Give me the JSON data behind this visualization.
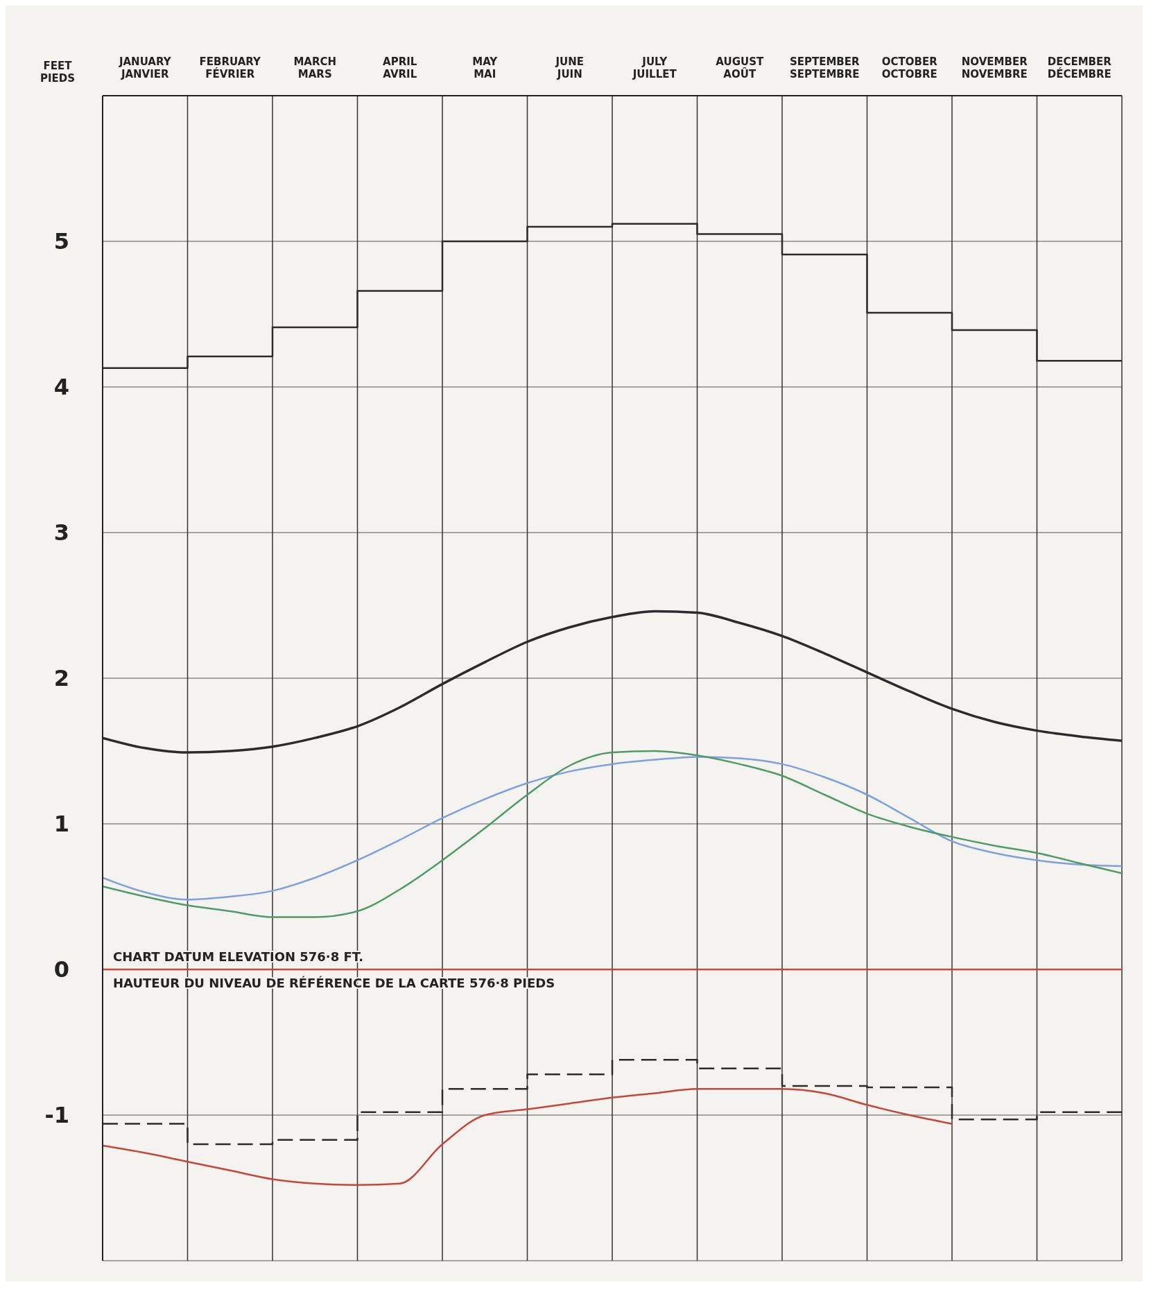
{
  "chart_data": {
    "type": "line",
    "ylabel": "FEET\nPIEDS",
    "categories": [
      null,
      "JANUARY\nJANVIER",
      null,
      "FEBRUARY\nFÉVRIER",
      null,
      "MARCH\nMARS",
      null,
      "APRIL\nAVRIL",
      null,
      "MAY\nMAI",
      null,
      "JUNE\nJUIN",
      null,
      "JULY\nJUILLET",
      null,
      "AUGUST\nAOÛT",
      null,
      "SEPTEMBER\nSEPTEMBRE",
      null,
      "OCTOBER\nOCTOBRE",
      null,
      "NOVEMBER\nNOVEMBRE",
      null,
      "DECEMBER\nDÉCEMBRE",
      null
    ],
    "ylim": [
      -2,
      6
    ],
    "yticks": [
      -1,
      0,
      1,
      2,
      3,
      4,
      5
    ],
    "grid": true,
    "series": [
      {
        "type": "step",
        "color": "#2b2b2b",
        "line_style": "solid",
        "values": [
          4.13,
          4.13,
          null,
          4.21,
          null,
          4.41,
          null,
          4.66,
          null,
          5.0,
          null,
          5.1,
          null,
          5.12,
          null,
          5.05,
          null,
          4.91,
          null,
          4.51,
          null,
          4.39,
          null,
          4.18,
          4.18
        ]
      },
      {
        "type": "step",
        "color": "#2b2b2b",
        "line_style": "dashed",
        "values": [
          -1.06,
          -1.06,
          null,
          -1.2,
          null,
          -1.17,
          null,
          -0.98,
          null,
          -0.82,
          null,
          -0.72,
          null,
          -0.62,
          null,
          -0.68,
          null,
          -0.8,
          null,
          -0.81,
          null,
          -1.03,
          null,
          -0.98,
          -0.98
        ]
      },
      {
        "color": "#2b2b2b",
        "values": [
          1.59,
          1.52,
          1.49,
          1.5,
          1.53,
          1.59,
          1.67,
          1.8,
          1.96,
          2.11,
          2.25,
          2.35,
          2.42,
          2.46,
          2.45,
          2.38,
          2.29,
          2.17,
          2.04,
          1.91,
          1.79,
          1.7,
          1.64,
          1.6,
          1.57
        ]
      },
      {
        "color": "#7f9fdf",
        "values": [
          0.63,
          0.53,
          0.48,
          0.5,
          0.54,
          0.63,
          0.75,
          0.89,
          1.04,
          1.17,
          1.28,
          1.36,
          1.41,
          1.44,
          1.46,
          1.45,
          1.41,
          1.32,
          1.2,
          1.04,
          0.88,
          0.8,
          0.75,
          0.72,
          0.71
        ]
      },
      {
        "color": "#4f9a6a",
        "values": [
          0.57,
          0.5,
          0.44,
          0.4,
          0.36,
          0.36,
          0.4,
          0.55,
          0.75,
          0.97,
          1.2,
          1.4,
          1.49,
          1.5,
          1.47,
          1.41,
          1.33,
          1.2,
          1.07,
          0.98,
          0.91,
          0.85,
          0.8,
          0.73,
          0.66
        ]
      },
      {
        "color": "#c8453a",
        "values": [
          -1.21,
          -1.26,
          -1.32,
          -1.38,
          -1.44,
          -1.47,
          -1.48,
          -1.47,
          -1.2,
          -1.0,
          -0.96,
          -0.92,
          -0.88,
          -0.85,
          -0.82,
          -0.82,
          -0.82,
          -0.85,
          -0.93,
          -1.0,
          -1.06,
          null,
          null,
          null,
          null
        ]
      }
    ],
    "ref_lines": [
      {
        "axis": "y",
        "value": 0,
        "color": "#c8453a",
        "label": "CHART DATUM ELEVATION 576·8 FT.\nHAUTEUR DU NIVEAU DE RÉFÉRENCE DE LA CARTE 576·8 PIEDS"
      }
    ]
  }
}
